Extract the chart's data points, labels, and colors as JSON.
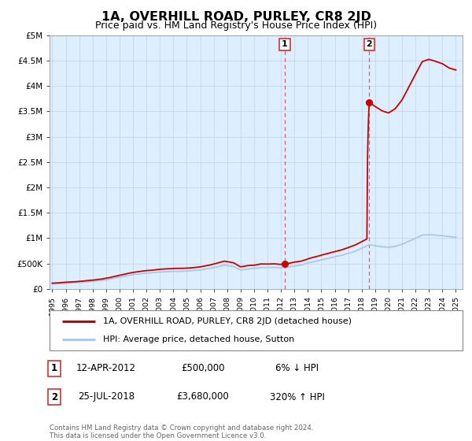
{
  "title": "1A, OVERHILL ROAD, PURLEY, CR8 2JD",
  "subtitle": "Price paid vs. HM Land Registry's House Price Index (HPI)",
  "background_color": "#ffffff",
  "plot_bg_color": "#ddeeff",
  "grid_color": "#c8d8e8",
  "xmin": 1994.8,
  "xmax": 2025.5,
  "ymin": 0,
  "ymax": 5000000,
  "yticks": [
    0,
    500000,
    1000000,
    1500000,
    2000000,
    2500000,
    3000000,
    3500000,
    4000000,
    4500000,
    5000000
  ],
  "ytick_labels": [
    "£0",
    "£500K",
    "£1M",
    "£1.5M",
    "£2M",
    "£2.5M",
    "£3M",
    "£3.5M",
    "£4M",
    "£4.5M",
    "£5M"
  ],
  "sale1_x": 2012.28,
  "sale1_y": 500000,
  "sale2_x": 2018.56,
  "sale2_y": 3680000,
  "sale1_label": "1",
  "sale2_label": "2",
  "hpi_color": "#aac8e8",
  "price_color": "#cc0000",
  "dot_color": "#cc0000",
  "legend_label1": "1A, OVERHILL ROAD, PURLEY, CR8 2JD (detached house)",
  "legend_label2": "HPI: Average price, detached house, Sutton",
  "annotation1": [
    "1",
    "12-APR-2012",
    "£500,000",
    "6% ↓ HPI"
  ],
  "annotation2": [
    "2",
    "25-JUL-2018",
    "£3,680,000",
    "320% ↑ HPI"
  ],
  "footer": "Contains HM Land Registry data © Crown copyright and database right 2024.\nThis data is licensed under the Open Government Licence v3.0."
}
